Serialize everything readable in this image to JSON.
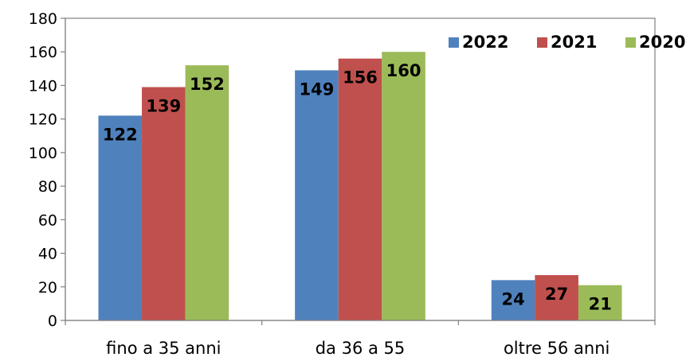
{
  "chart_data": {
    "type": "bar",
    "categories": [
      "fino a 35 anni",
      "da 36 a 55",
      "oltre 56 anni"
    ],
    "series": [
      {
        "name": "2022",
        "color": "#4F81BD",
        "values": [
          122,
          149,
          24
        ]
      },
      {
        "name": "2021",
        "color": "#C0504D",
        "values": [
          139,
          156,
          27
        ]
      },
      {
        "name": "2020",
        "color": "#9BBB59",
        "values": [
          152,
          160,
          21
        ]
      }
    ],
    "ylim": [
      0,
      180
    ],
    "yticks": [
      0,
      20,
      40,
      60,
      80,
      100,
      120,
      140,
      160,
      180
    ],
    "data_labels": true,
    "legend_position": "top-right",
    "grid": false
  }
}
